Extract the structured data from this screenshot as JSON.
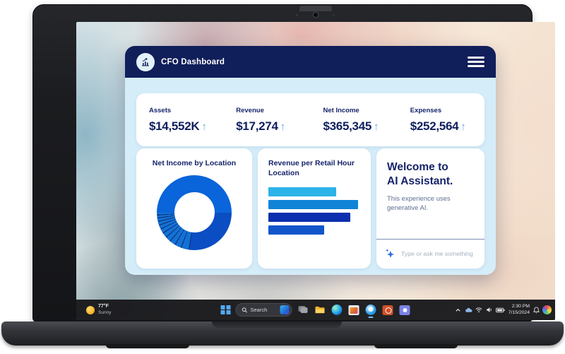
{
  "window": {
    "title": "CFO Dashboard"
  },
  "glyphs": {
    "up_arrow": "↑"
  },
  "metrics": [
    {
      "label": "Assets",
      "value": "$14,552K",
      "trend": "up"
    },
    {
      "label": "Revenue",
      "value": "$17,274",
      "trend": "up"
    },
    {
      "label": "Net Income",
      "value": "$365,345",
      "trend": "up"
    },
    {
      "label": "Expenses",
      "value": "$252,564",
      "trend": "up"
    }
  ],
  "chart_data": [
    {
      "type": "pie",
      "donut": true,
      "title": "Net Income by Location",
      "legend_position": "none",
      "start_angle_deg": -90,
      "segments": [
        {
          "value": 50,
          "color": "#0A64DA"
        },
        {
          "value": 27,
          "color": "#0B4DC2"
        },
        {
          "value": 3.5,
          "color": "#1371D6"
        },
        {
          "value": 2.9,
          "color": "#1371D6"
        },
        {
          "value": 2.6,
          "color": "#1371D6"
        },
        {
          "value": 2.4,
          "color": "#1371D6"
        },
        {
          "value": 2.2,
          "color": "#1371D6"
        },
        {
          "value": 2.0,
          "color": "#1371D6"
        },
        {
          "value": 1.8,
          "color": "#1371D6"
        },
        {
          "value": 1.6,
          "color": "#1371D6"
        },
        {
          "value": 1.5,
          "color": "#1371D6"
        },
        {
          "value": 1.3,
          "color": "#1371D6"
        },
        {
          "value": 1.2,
          "color": "#1371D6"
        }
      ],
      "separator": {
        "color": "#0C2A66",
        "width_deg": 1.3,
        "from_index": 2
      }
    },
    {
      "type": "bar",
      "orientation": "horizontal",
      "title": "Revenue per Retail Hour Location",
      "axis_labels": "hidden",
      "values": [
        74,
        98,
        89,
        61
      ],
      "value_unit": "percent-of-track-width",
      "colors": [
        "#2CB3E9",
        "#1184D7",
        "#0B2FAE",
        "#1156CB"
      ]
    }
  ],
  "assistant": {
    "title_line1": "Welcome to",
    "title_line2": "AI Assistant.",
    "subtitle": "This experience uses generative AI.",
    "input_placeholder": "Type or ask me something"
  },
  "taskbar": {
    "weather": {
      "temperature": "77°F",
      "condition": "Sunny"
    },
    "search": {
      "placeholder": "Search"
    },
    "clock": {
      "time": "2:30 PM",
      "date": "7/15/2024"
    },
    "app_icons": [
      "windows-start",
      "task-view",
      "file-explorer",
      "edge",
      "store",
      "copilot",
      "powerpoint",
      "teams"
    ],
    "tray_icons": [
      "hidden-icons-chevron",
      "onedrive",
      "wifi",
      "volume",
      "battery",
      "notification-bell",
      "copilot-colorful"
    ]
  }
}
